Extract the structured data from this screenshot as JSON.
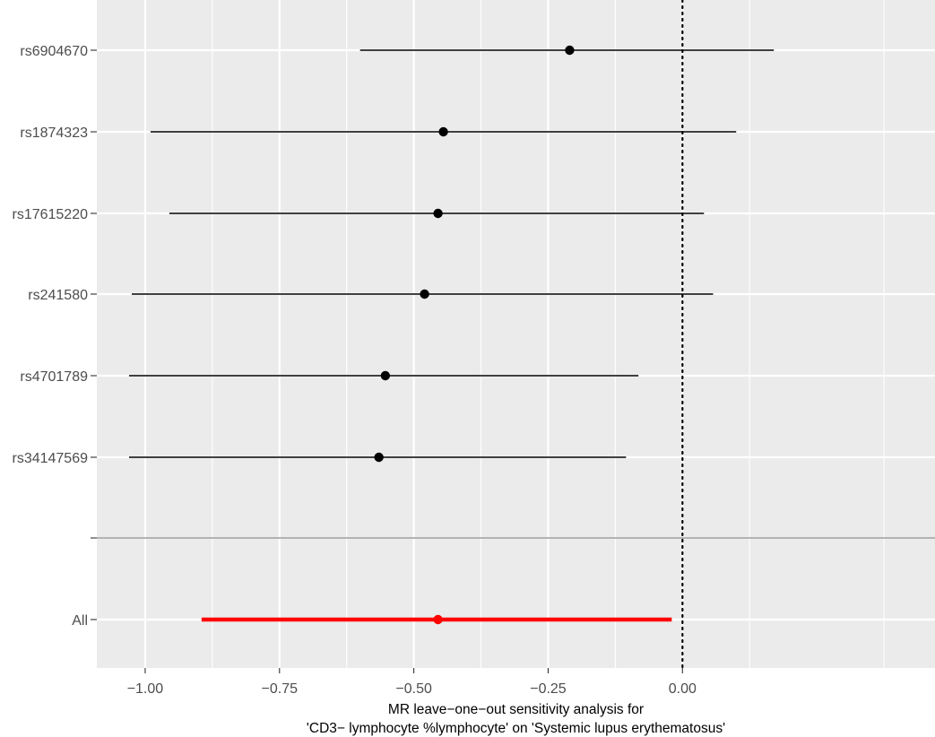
{
  "chart_data": {
    "type": "forest",
    "xlabel_lines": [
      "MR leave−one−out sensitivity analysis for",
      "'CD3− lymphocyte %lymphocyte' on 'Systemic lupus erythematosus'"
    ],
    "ylabel": "",
    "xlim": [
      -1.09,
      0.47
    ],
    "x_ticks": [
      -1.0,
      -0.75,
      -0.5,
      -0.25,
      0.0
    ],
    "x_tick_labels": [
      "−1.00",
      "−0.75",
      "−0.50",
      "−0.25",
      "0.00"
    ],
    "reference_line": 0.0,
    "grid": true,
    "background": "#ebebeb",
    "grid_color": "#ffffff",
    "snp_color": "#000000",
    "overall_color": "#ff0000",
    "separator_color": "#b3b3b3",
    "rows": [
      {
        "label": "rs6904670",
        "estimate": -0.21,
        "lower": -0.6,
        "upper": 0.17
      },
      {
        "label": "rs1874323",
        "estimate": -0.445,
        "lower": -0.99,
        "upper": 0.1
      },
      {
        "label": "rs17615220",
        "estimate": -0.455,
        "lower": -0.955,
        "upper": 0.04
      },
      {
        "label": "rs241580",
        "estimate": -0.48,
        "lower": -1.025,
        "upper": 0.057
      },
      {
        "label": "rs4701789",
        "estimate": -0.553,
        "lower": -1.03,
        "upper": -0.082
      },
      {
        "label": "rs34147569",
        "estimate": -0.565,
        "lower": -1.03,
        "upper": -0.105
      }
    ],
    "overall": {
      "label": "All",
      "estimate": -0.455,
      "lower": -0.895,
      "upper": -0.02
    }
  }
}
